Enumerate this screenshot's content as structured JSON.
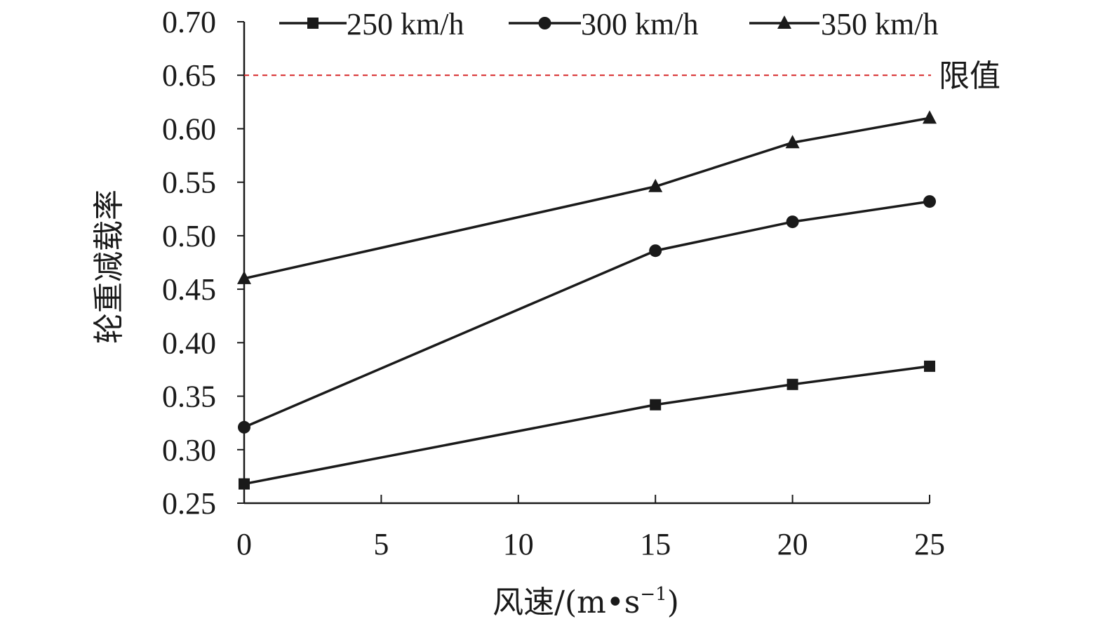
{
  "chart_data": {
    "type": "line",
    "xlabel": "风速/(m•s",
    "xlabel_sup": "−1",
    "xlabel_end": ")",
    "ylabel": "轮重减载率",
    "x": [
      0,
      15,
      20,
      25
    ],
    "xlim": [
      0,
      25
    ],
    "ylim": [
      0.25,
      0.7
    ],
    "xticks": [
      0,
      5,
      10,
      15,
      20,
      25
    ],
    "xtick_labels": [
      "0",
      "5",
      "10",
      "15",
      "20",
      "25"
    ],
    "yticks": [
      0.25,
      0.3,
      0.35,
      0.4,
      0.45,
      0.5,
      0.55,
      0.6,
      0.65,
      0.7
    ],
    "ytick_labels": [
      "0.25",
      "0.30",
      "0.35",
      "0.40",
      "0.45",
      "0.50",
      "0.55",
      "0.60",
      "0.65",
      "0.70"
    ],
    "grid": false,
    "legend_position": "top",
    "series": [
      {
        "name": "250 km/h",
        "marker": "square",
        "values": [
          0.268,
          0.342,
          0.361,
          0.378
        ]
      },
      {
        "name": "300 km/h",
        "marker": "circle",
        "values": [
          0.321,
          0.486,
          0.513,
          0.532
        ]
      },
      {
        "name": "350 km/h",
        "marker": "triangle",
        "values": [
          0.46,
          0.546,
          0.587,
          0.61
        ]
      }
    ],
    "limit": {
      "label": "限值",
      "value": 0.65,
      "color": "#d62728",
      "style": "dashed"
    },
    "colors": {
      "line": "#1a1a1a",
      "axis": "#1a1a1a"
    }
  }
}
